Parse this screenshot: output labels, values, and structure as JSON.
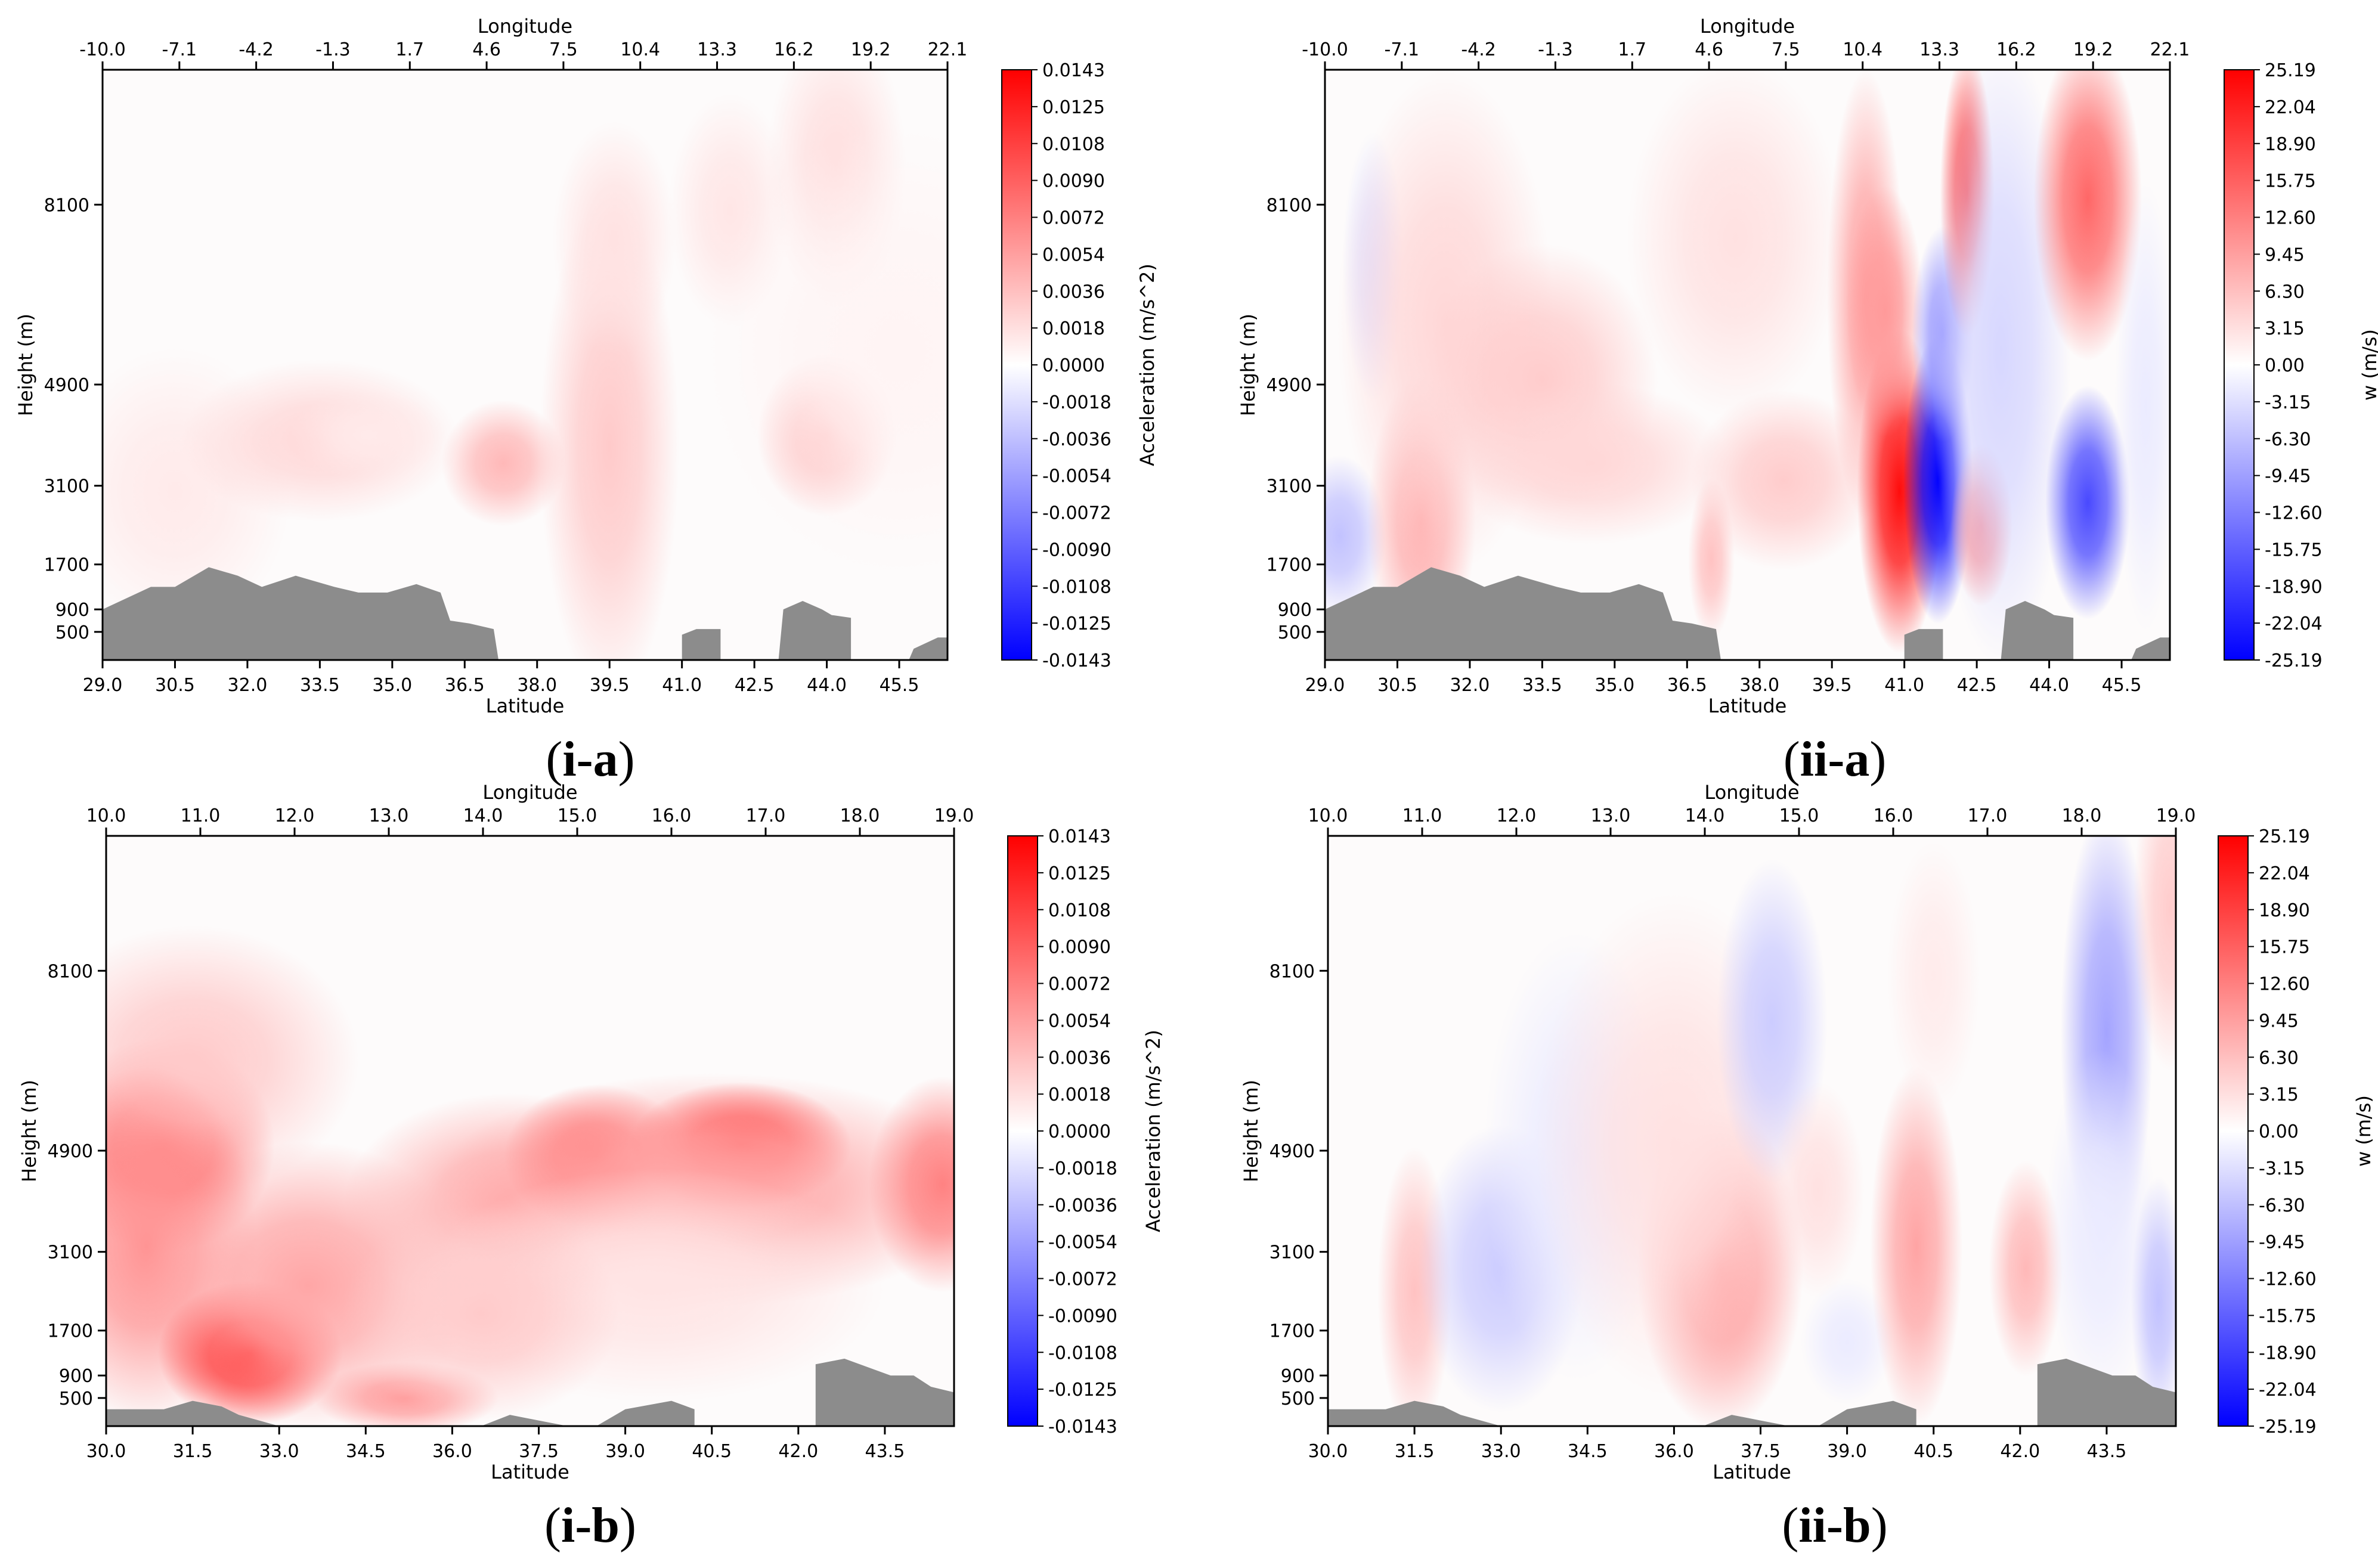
{
  "figure": {
    "panels": [
      {
        "id": "i-a",
        "caption": "i-a"
      },
      {
        "id": "ii-a",
        "caption": "ii-a"
      },
      {
        "id": "i-b",
        "caption": "i-b"
      },
      {
        "id": "ii-b",
        "caption": "ii-b"
      }
    ]
  },
  "colors": {
    "positive": "#ff0000",
    "negative": "#0000ff",
    "neutral": "#ffffff",
    "terrain": "#8c8c8c",
    "axis": "#000000"
  },
  "chart_data": [
    {
      "id": "i-a",
      "type": "heatmap",
      "subtype": "filled-contour cross-section",
      "xlabel": "Latitude",
      "x_ticks": [
        "29.0",
        "30.5",
        "32.0",
        "33.5",
        "35.0",
        "36.5",
        "38.0",
        "39.5",
        "41.0",
        "42.5",
        "44.0",
        "45.5"
      ],
      "xlim": [
        29.0,
        46.5
      ],
      "top_label": "Longitude",
      "top_ticks": [
        "-10.0",
        "-7.1",
        "-4.2",
        "-1.3",
        "1.7",
        "4.6",
        "7.5",
        "10.4",
        "13.3",
        "16.2",
        "19.2",
        "22.1"
      ],
      "ylabel": "Height (m)",
      "y_ticks": [
        500,
        900,
        1700,
        3100,
        4900,
        8100
      ],
      "ylim": [
        0,
        10500
      ],
      "colorbar_label": "Acceleration (m/s^2)",
      "colorbar_ticks": [
        "0.0143",
        "0.0125",
        "0.0108",
        "0.0090",
        "0.0072",
        "0.0054",
        "0.0036",
        "0.0018",
        "0.0000",
        "-0.0018",
        "-0.0036",
        "-0.0054",
        "-0.0072",
        "-0.0090",
        "-0.0108",
        "-0.0125",
        "-0.0143"
      ],
      "vrange": [
        -0.0143,
        0.0143
      ],
      "field": [
        {
          "lat": 30.5,
          "z": 3000,
          "slat": 1.5,
          "sz": 1600,
          "v": 0.0012
        },
        {
          "lat": 33.5,
          "z": 3900,
          "slat": 1.8,
          "sz": 900,
          "v": 0.0022
        },
        {
          "lat": 34.5,
          "z": 4000,
          "slat": 1.0,
          "sz": 500,
          "v": 0.0012
        },
        {
          "lat": 37.3,
          "z": 3500,
          "slat": 0.8,
          "sz": 700,
          "v": 0.004
        },
        {
          "lat": 39.5,
          "z": 3800,
          "slat": 0.9,
          "sz": 2800,
          "v": 0.003
        },
        {
          "lat": 39.6,
          "z": 7500,
          "slat": 0.8,
          "sz": 1300,
          "v": 0.0016
        },
        {
          "lat": 42.0,
          "z": 8000,
          "slat": 0.8,
          "sz": 1300,
          "v": 0.0014
        },
        {
          "lat": 44.0,
          "z": 4000,
          "slat": 0.9,
          "sz": 900,
          "v": 0.0045
        },
        {
          "lat": 44.2,
          "z": 8800,
          "slat": 0.9,
          "sz": 1600,
          "v": 0.0018
        },
        {
          "lat": 45.5,
          "z": 5500,
          "slat": 2.5,
          "sz": 2500,
          "v": 0.0006
        }
      ],
      "terrain": [
        [
          29.0,
          900
        ],
        [
          30.0,
          1300
        ],
        [
          30.5,
          1300
        ],
        [
          31.2,
          1650
        ],
        [
          31.8,
          1500
        ],
        [
          32.3,
          1300
        ],
        [
          33.0,
          1500
        ],
        [
          33.8,
          1300
        ],
        [
          34.3,
          1200
        ],
        [
          34.9,
          1200
        ],
        [
          35.5,
          1350
        ],
        [
          36.0,
          1200
        ],
        [
          36.2,
          700
        ],
        [
          36.6,
          650
        ],
        [
          37.1,
          550
        ],
        [
          37.2,
          0
        ],
        [
          41.0,
          0
        ],
        [
          41.0,
          450
        ],
        [
          41.3,
          550
        ],
        [
          41.8,
          550
        ],
        [
          41.8,
          0
        ],
        [
          43.0,
          0
        ],
        [
          43.1,
          900
        ],
        [
          43.5,
          1050
        ],
        [
          43.9,
          900
        ],
        [
          44.1,
          800
        ],
        [
          44.5,
          750
        ],
        [
          44.5,
          0
        ],
        [
          45.7,
          0
        ],
        [
          45.8,
          200
        ],
        [
          46.3,
          400
        ],
        [
          46.8,
          400
        ],
        [
          46.8,
          0
        ]
      ]
    },
    {
      "id": "ii-a",
      "type": "heatmap",
      "subtype": "filled-contour cross-section",
      "xlabel": "Latitude",
      "x_ticks": [
        "29.0",
        "30.5",
        "32.0",
        "33.5",
        "35.0",
        "36.5",
        "38.0",
        "39.5",
        "41.0",
        "42.5",
        "44.0",
        "45.5"
      ],
      "xlim": [
        29.0,
        46.5
      ],
      "top_label": "Longitude",
      "top_ticks": [
        "-10.0",
        "-7.1",
        "-4.2",
        "-1.3",
        "1.7",
        "4.6",
        "7.5",
        "10.4",
        "13.3",
        "16.2",
        "19.2",
        "22.1"
      ],
      "ylabel": "Height (m)",
      "y_ticks": [
        500,
        900,
        1700,
        3100,
        4900,
        8100
      ],
      "ylim": [
        0,
        10500
      ],
      "colorbar_label": "w (m/s)",
      "colorbar_ticks": [
        "25.19",
        "22.04",
        "18.90",
        "15.75",
        "12.60",
        "9.45",
        "6.30",
        "3.15",
        "0.00",
        "-3.15",
        "-6.30",
        "-9.45",
        "-12.60",
        "-15.75",
        "-18.90",
        "-22.04",
        "-25.19"
      ],
      "vrange": [
        -25.19,
        25.19
      ],
      "field": [
        {
          "lat": 29.3,
          "z": 2200,
          "slat": 0.6,
          "sz": 900,
          "v": -6
        },
        {
          "lat": 30.0,
          "z": 7000,
          "slat": 0.4,
          "sz": 1500,
          "v": -3
        },
        {
          "lat": 31.0,
          "z": 2500,
          "slat": 0.7,
          "sz": 1600,
          "v": 8
        },
        {
          "lat": 31.5,
          "z": 6000,
          "slat": 1.4,
          "sz": 2800,
          "v": 4
        },
        {
          "lat": 33.5,
          "z": 5000,
          "slat": 1.5,
          "sz": 1500,
          "v": 5
        },
        {
          "lat": 34.5,
          "z": 3500,
          "slat": 1.8,
          "sz": 900,
          "v": 4
        },
        {
          "lat": 37.5,
          "z": 7500,
          "slat": 1.4,
          "sz": 2000,
          "v": 3
        },
        {
          "lat": 37.0,
          "z": 1800,
          "slat": 0.3,
          "sz": 900,
          "v": 6
        },
        {
          "lat": 38.5,
          "z": 3200,
          "slat": 1.2,
          "sz": 1000,
          "v": 5
        },
        {
          "lat": 40.2,
          "z": 6500,
          "slat": 0.5,
          "sz": 2500,
          "v": 9
        },
        {
          "lat": 40.9,
          "z": 3000,
          "slat": 0.55,
          "sz": 1800,
          "v": 24
        },
        {
          "lat": 40.6,
          "z": 6200,
          "slat": 0.5,
          "sz": 1400,
          "v": 10
        },
        {
          "lat": 41.7,
          "z": 3200,
          "slat": 0.45,
          "sz": 1600,
          "v": -25
        },
        {
          "lat": 41.8,
          "z": 5800,
          "slat": 0.4,
          "sz": 1200,
          "v": -10
        },
        {
          "lat": 42.3,
          "z": 8300,
          "slat": 0.35,
          "sz": 1600,
          "v": 18
        },
        {
          "lat": 42.6,
          "z": 2400,
          "slat": 0.4,
          "sz": 900,
          "v": 12
        },
        {
          "lat": 43.0,
          "z": 5500,
          "slat": 0.9,
          "sz": 3500,
          "v": -4
        },
        {
          "lat": 44.8,
          "z": 2800,
          "slat": 0.55,
          "sz": 1300,
          "v": -18
        },
        {
          "lat": 44.8,
          "z": 8200,
          "slat": 0.7,
          "sz": 1800,
          "v": 15
        },
        {
          "lat": 46.0,
          "z": 4500,
          "slat": 0.4,
          "sz": 2500,
          "v": -2
        }
      ],
      "terrain": [
        [
          29.0,
          900
        ],
        [
          30.0,
          1300
        ],
        [
          30.5,
          1300
        ],
        [
          31.2,
          1650
        ],
        [
          31.8,
          1500
        ],
        [
          32.3,
          1300
        ],
        [
          33.0,
          1500
        ],
        [
          33.8,
          1300
        ],
        [
          34.3,
          1200
        ],
        [
          34.9,
          1200
        ],
        [
          35.5,
          1350
        ],
        [
          36.0,
          1200
        ],
        [
          36.2,
          700
        ],
        [
          36.6,
          650
        ],
        [
          37.1,
          550
        ],
        [
          37.2,
          0
        ],
        [
          41.0,
          0
        ],
        [
          41.0,
          450
        ],
        [
          41.3,
          550
        ],
        [
          41.8,
          550
        ],
        [
          41.8,
          0
        ],
        [
          43.0,
          0
        ],
        [
          43.1,
          900
        ],
        [
          43.5,
          1050
        ],
        [
          43.9,
          900
        ],
        [
          44.1,
          800
        ],
        [
          44.5,
          750
        ],
        [
          44.5,
          0
        ],
        [
          45.7,
          0
        ],
        [
          45.8,
          200
        ],
        [
          46.3,
          400
        ],
        [
          46.8,
          400
        ],
        [
          46.8,
          0
        ]
      ]
    },
    {
      "id": "i-b",
      "type": "heatmap",
      "subtype": "filled-contour cross-section",
      "xlabel": "Latitude",
      "x_ticks": [
        "30.0",
        "31.5",
        "33.0",
        "34.5",
        "36.0",
        "37.5",
        "39.0",
        "40.5",
        "42.0",
        "43.5"
      ],
      "xlim": [
        30.0,
        44.7
      ],
      "top_label": "Longitude",
      "top_ticks": [
        "10.0",
        "11.0",
        "12.0",
        "13.0",
        "14.0",
        "15.0",
        "16.0",
        "17.0",
        "18.0",
        "19.0"
      ],
      "ylabel": "Height (m)",
      "y_ticks": [
        500,
        900,
        1700,
        3100,
        4900,
        8100
      ],
      "ylim": [
        0,
        10500
      ],
      "colorbar_label": "Acceleration (m/s^2)",
      "colorbar_ticks": [
        "0.0143",
        "0.0125",
        "0.0108",
        "0.0090",
        "0.0072",
        "0.0054",
        "0.0036",
        "0.0018",
        "0.0000",
        "-0.0018",
        "-0.0036",
        "-0.0054",
        "-0.0072",
        "-0.0090",
        "-0.0108",
        "-0.0125",
        "-0.0143"
      ],
      "vrange": [
        -0.0143,
        0.0143
      ],
      "field": [
        {
          "lat": 31.0,
          "z": 5000,
          "slat": 1.2,
          "sz": 1200,
          "v": 0.01
        },
        {
          "lat": 31.5,
          "z": 6500,
          "slat": 1.8,
          "sz": 1500,
          "v": 0.003
        },
        {
          "lat": 30.7,
          "z": 3200,
          "slat": 1.2,
          "sz": 2000,
          "v": 0.006
        },
        {
          "lat": 32.5,
          "z": 1300,
          "slat": 1.0,
          "sz": 800,
          "v": 0.013
        },
        {
          "lat": 33.5,
          "z": 2500,
          "slat": 1.8,
          "sz": 1600,
          "v": 0.005
        },
        {
          "lat": 35.2,
          "z": 500,
          "slat": 1.0,
          "sz": 400,
          "v": 0.0055
        },
        {
          "lat": 37.0,
          "z": 4000,
          "slat": 1.8,
          "sz": 1200,
          "v": 0.0045
        },
        {
          "lat": 38.5,
          "z": 4800,
          "slat": 1.0,
          "sz": 800,
          "v": 0.008
        },
        {
          "lat": 41.0,
          "z": 5000,
          "slat": 1.2,
          "sz": 700,
          "v": 0.012
        },
        {
          "lat": 40.5,
          "z": 4200,
          "slat": 3.0,
          "sz": 1300,
          "v": 0.005
        },
        {
          "lat": 44.5,
          "z": 4300,
          "slat": 0.8,
          "sz": 1200,
          "v": 0.007
        },
        {
          "lat": 39.5,
          "z": 2500,
          "slat": 2.5,
          "sz": 1300,
          "v": 0.0015
        },
        {
          "lat": 36.5,
          "z": 2000,
          "slat": 1.5,
          "sz": 1200,
          "v": 0.003
        }
      ],
      "terrain": [
        [
          30.0,
          300
        ],
        [
          31.0,
          300
        ],
        [
          31.5,
          450
        ],
        [
          32.0,
          350
        ],
        [
          32.3,
          200
        ],
        [
          33.0,
          0
        ],
        [
          36.5,
          0
        ],
        [
          37.0,
          200
        ],
        [
          37.5,
          100
        ],
        [
          38.0,
          0
        ],
        [
          38.5,
          0
        ],
        [
          39.0,
          300
        ],
        [
          39.8,
          450
        ],
        [
          40.2,
          300
        ],
        [
          40.2,
          0
        ],
        [
          42.3,
          0
        ],
        [
          42.3,
          1100
        ],
        [
          42.8,
          1200
        ],
        [
          43.6,
          900
        ],
        [
          44.0,
          900
        ],
        [
          44.3,
          700
        ],
        [
          44.7,
          600
        ],
        [
          44.7,
          0
        ]
      ]
    },
    {
      "id": "ii-b",
      "type": "heatmap",
      "subtype": "filled-contour cross-section",
      "xlabel": "Latitude",
      "x_ticks": [
        "30.0",
        "31.5",
        "33.0",
        "34.5",
        "36.0",
        "37.5",
        "39.0",
        "40.5",
        "42.0",
        "43.5"
      ],
      "xlim": [
        30.0,
        44.7
      ],
      "top_label": "Longitude",
      "top_ticks": [
        "10.0",
        "11.0",
        "12.0",
        "13.0",
        "14.0",
        "15.0",
        "16.0",
        "17.0",
        "18.0",
        "19.0"
      ],
      "ylabel": "Height (m)",
      "y_ticks": [
        500,
        900,
        1700,
        3100,
        4900,
        8100
      ],
      "ylim": [
        0,
        10500
      ],
      "colorbar_label": "w (m/s)",
      "colorbar_ticks": [
        "25.19",
        "22.04",
        "18.90",
        "15.75",
        "12.60",
        "9.45",
        "6.30",
        "3.15",
        "0.00",
        "-3.15",
        "-6.30",
        "-9.45",
        "-12.60",
        "-15.75",
        "-18.90",
        "-22.04",
        "-25.19"
      ],
      "vrange": [
        -25.19,
        25.19
      ],
      "field": [
        {
          "lat": 31.5,
          "z": 2400,
          "slat": 0.4,
          "sz": 1600,
          "v": 6
        },
        {
          "lat": 33.0,
          "z": 2800,
          "slat": 0.9,
          "sz": 1600,
          "v": -5
        },
        {
          "lat": 34.3,
          "z": 4800,
          "slat": 1.0,
          "sz": 2500,
          "v": -2
        },
        {
          "lat": 36.8,
          "z": 2800,
          "slat": 0.9,
          "sz": 1800,
          "v": 11
        },
        {
          "lat": 36.0,
          "z": 5000,
          "slat": 1.5,
          "sz": 2800,
          "v": 3
        },
        {
          "lat": 37.7,
          "z": 7200,
          "slat": 0.6,
          "sz": 1800,
          "v": -5
        },
        {
          "lat": 38.5,
          "z": 4200,
          "slat": 0.5,
          "sz": 1200,
          "v": 3
        },
        {
          "lat": 39.0,
          "z": 1500,
          "slat": 0.5,
          "sz": 700,
          "v": -2
        },
        {
          "lat": 40.2,
          "z": 3200,
          "slat": 0.5,
          "sz": 2000,
          "v": 9
        },
        {
          "lat": 40.5,
          "z": 8000,
          "slat": 0.5,
          "sz": 1500,
          "v": 2
        },
        {
          "lat": 42.1,
          "z": 2800,
          "slat": 0.4,
          "sz": 1200,
          "v": 7
        },
        {
          "lat": 43.5,
          "z": 7000,
          "slat": 0.5,
          "sz": 2500,
          "v": -9
        },
        {
          "lat": 43.4,
          "z": 3500,
          "slat": 0.6,
          "sz": 2000,
          "v": -2
        },
        {
          "lat": 44.4,
          "z": 2200,
          "slat": 0.3,
          "sz": 1400,
          "v": -6
        },
        {
          "lat": 44.6,
          "z": 9200,
          "slat": 0.4,
          "sz": 1800,
          "v": 5
        }
      ],
      "terrain": [
        [
          30.0,
          300
        ],
        [
          31.0,
          300
        ],
        [
          31.5,
          450
        ],
        [
          32.0,
          350
        ],
        [
          32.3,
          200
        ],
        [
          33.0,
          0
        ],
        [
          36.5,
          0
        ],
        [
          37.0,
          200
        ],
        [
          37.5,
          100
        ],
        [
          38.0,
          0
        ],
        [
          38.5,
          0
        ],
        [
          39.0,
          300
        ],
        [
          39.8,
          450
        ],
        [
          40.2,
          300
        ],
        [
          40.2,
          0
        ],
        [
          42.3,
          0
        ],
        [
          42.3,
          1100
        ],
        [
          42.8,
          1200
        ],
        [
          43.6,
          900
        ],
        [
          44.0,
          900
        ],
        [
          44.3,
          700
        ],
        [
          44.7,
          600
        ],
        [
          44.7,
          0
        ]
      ]
    }
  ]
}
